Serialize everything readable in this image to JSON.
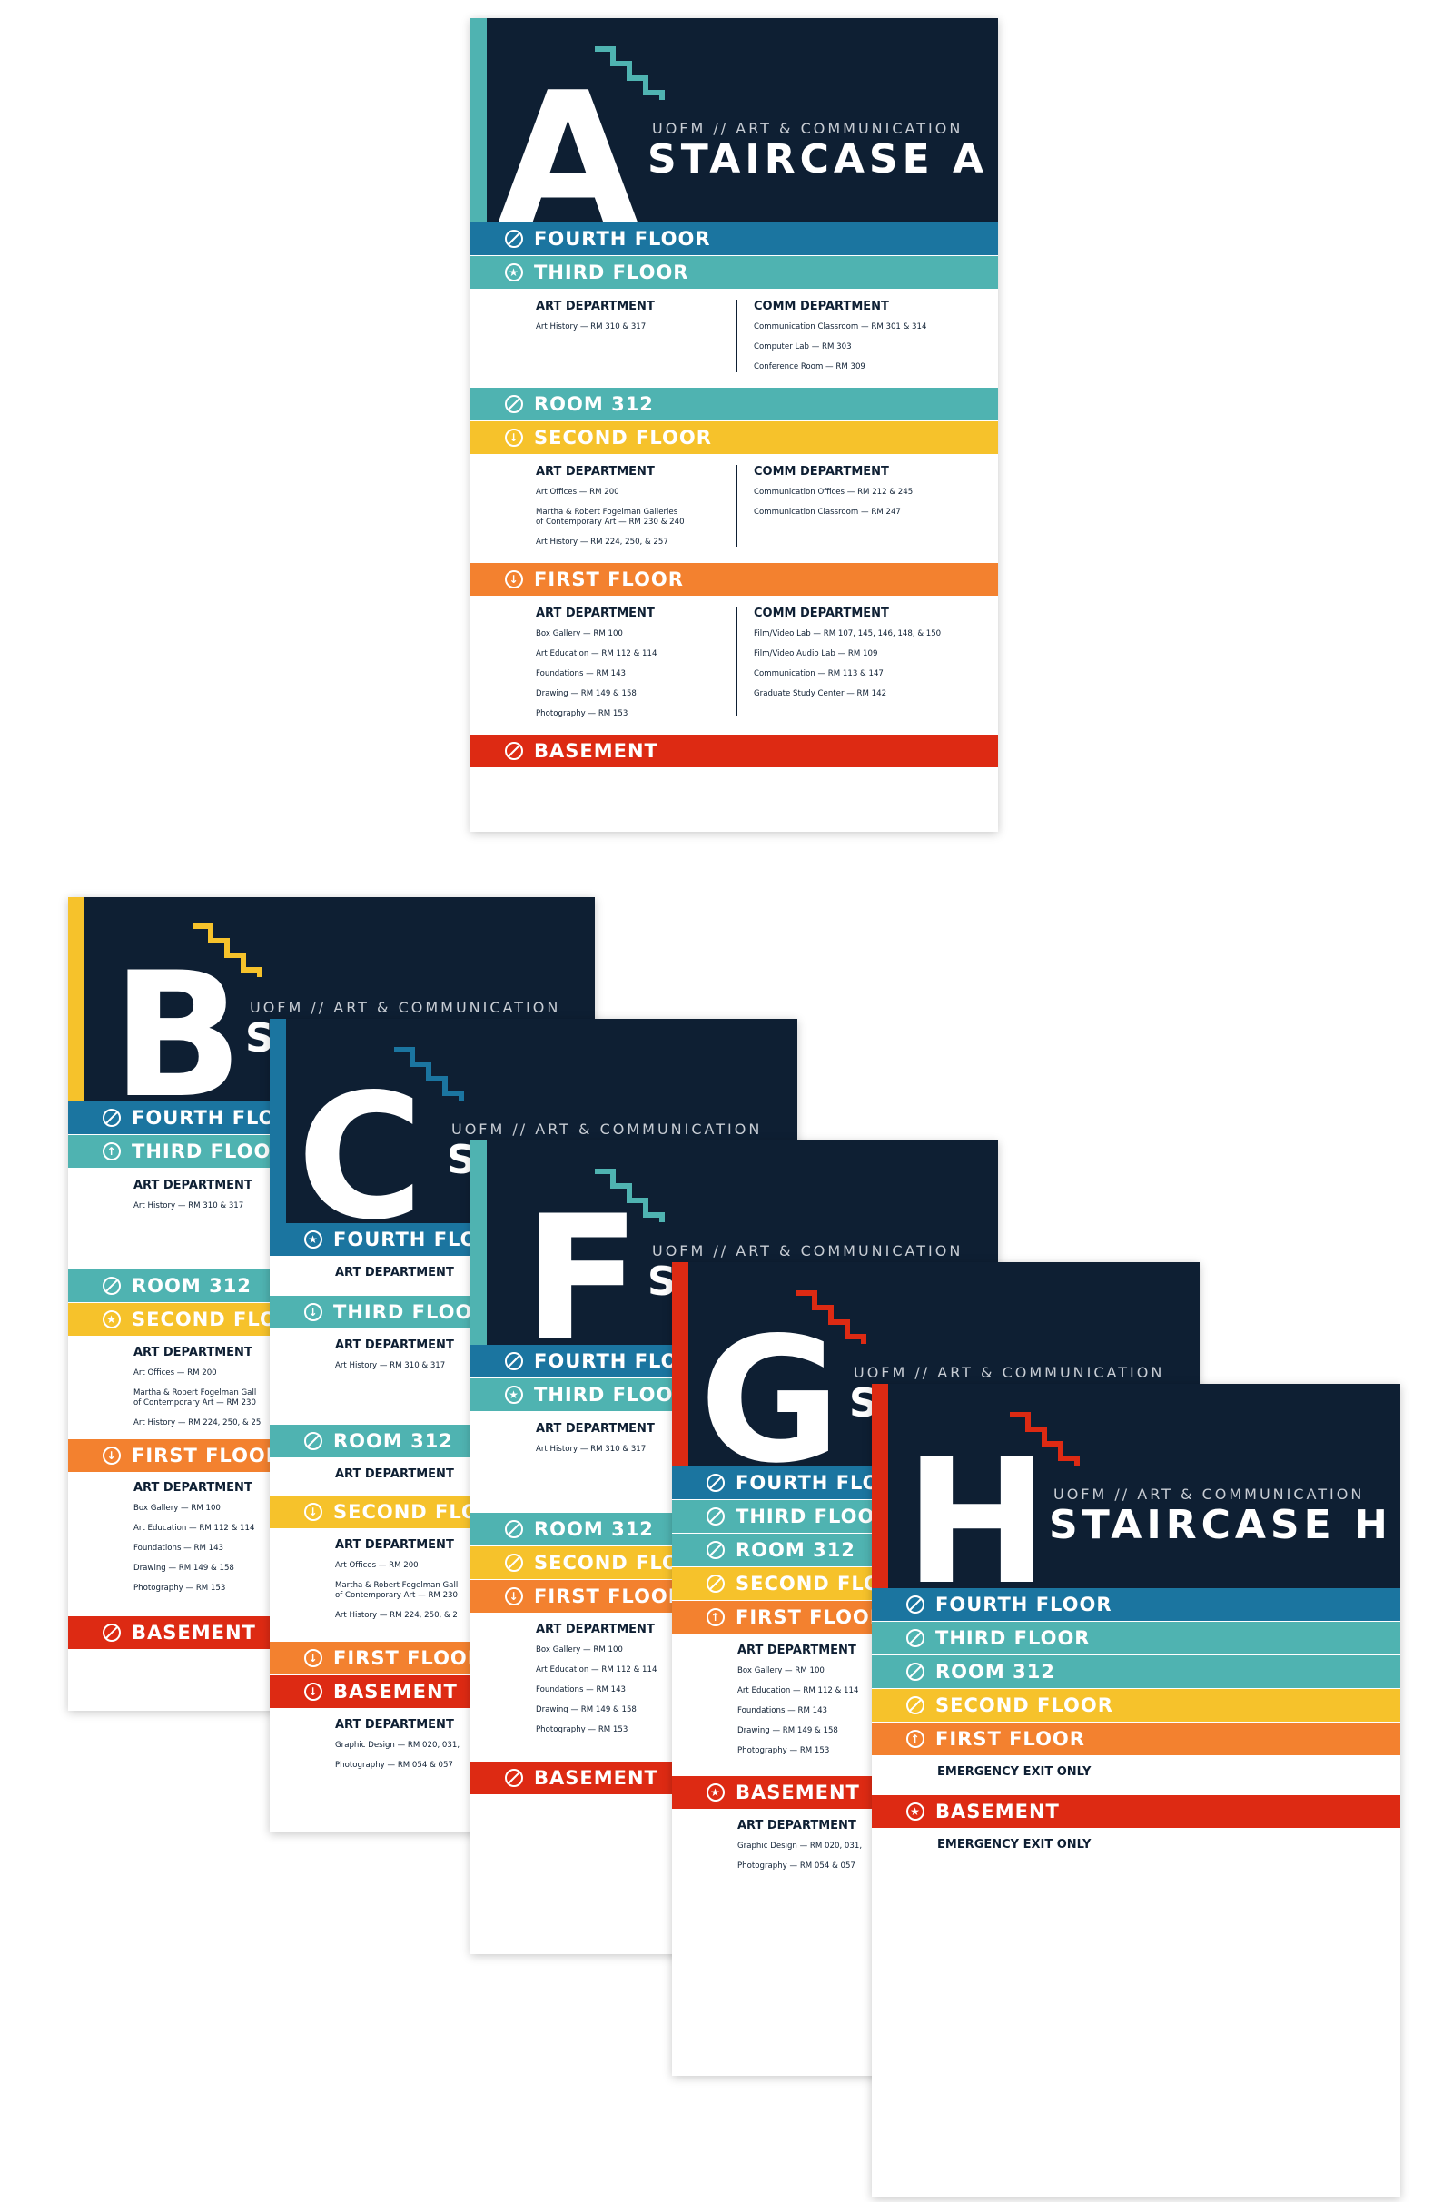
{
  "org": "UOFM // ART & COMMUNICATION",
  "colors": {
    "navy": "#0e1f33",
    "blue": "#1b75a0",
    "teal": "#4fb3b1",
    "yellow": "#f6c22b",
    "orange": "#f3812f",
    "red": "#dd2a13"
  },
  "floor_labels": {
    "fourth": "FOURTH FLOOR",
    "third": "THIRD FLOOR",
    "room312": "ROOM 312",
    "second": "SECOND FLOOR",
    "first": "FIRST FLOOR",
    "basement": "BASEMENT"
  },
  "dept_labels": {
    "art": "ART DEPARTMENT",
    "comm": "COMM DEPARTMENT"
  },
  "icons": {
    "no_access": "no-entry-icon",
    "current": "star-icon",
    "down": "arrow-down-icon",
    "up": "arrow-up-icon"
  },
  "signs": {
    "a": {
      "letter": "A",
      "title": "STAIRCASE A",
      "third_art": [
        "Art History — RM 310 & 317"
      ],
      "third_comm": [
        "Communication Classroom — RM 301 & 314",
        "Computer Lab — RM 303",
        "Conference Room — RM 309"
      ],
      "second_art": [
        "Art Offices — RM 200",
        "Martha & Robert Fogelman Galleries\nof Contemporary Art — RM 230 & 240",
        "Art History — RM 224, 250, & 257"
      ],
      "second_comm": [
        "Communication Offices — RM 212 & 245",
        "Communication Classroom — RM 247"
      ],
      "first_art": [
        "Box Gallery — RM 100",
        "Art Education — RM 112 & 114",
        "Foundations — RM 143",
        "Drawing — RM 149 & 158",
        "Photography — RM 153"
      ],
      "first_comm": [
        "Film/Video Lab — RM 107, 145, 146, 148, & 150",
        "Film/Video Audio Lab — RM 109",
        "Communication — RM 113 & 147",
        "Graduate Study Center — RM 142"
      ]
    },
    "b": {
      "letter": "B",
      "title_partial": "S",
      "fourth": "FOURTH FLOO",
      "third": "THIRD FLOOR",
      "second": "SECOND FLOO",
      "third_art": [
        "Art History — RM 310 & 317"
      ],
      "second_art": [
        "Art Offices — RM 200",
        "Martha & Robert Fogelman Gall\nof Contemporary Art — RM 230",
        "Art History — RM 224, 250, & 25"
      ],
      "first_art": [
        "Box Gallery — RM 100",
        "Art Education — RM 112 & 114",
        "Foundations — RM 143",
        "Drawing — RM 149 & 158",
        "Photography — RM 153"
      ]
    },
    "c": {
      "letter": "C",
      "title_partial": "S",
      "fourth": "FOURTH FLOO",
      "third": "THIRD FLOOR",
      "second": "SECOND FLOO",
      "third_art": [
        "Art History — RM 310 & 317"
      ],
      "second_art": [
        "Art Offices — RM 200",
        "Martha & Robert Fogelman Gall\nof Contemporary Art — RM 230",
        "Art History — RM 224, 250, & 2"
      ],
      "basement_art": [
        "Graphic Design — RM 020, 031,",
        "Photography — RM 054 & 057"
      ]
    },
    "f": {
      "letter": "F",
      "title_partial": "S",
      "fourth": "FOURTH FLOO",
      "third": "THIRD FLOOR",
      "second": "SECOND FLOO",
      "third_art": [
        "Art History — RM 310 & 317"
      ],
      "first_art": [
        "Box Gallery — RM 100",
        "Art Education — RM 112 & 114",
        "Foundations — RM 143",
        "Drawing — RM 149 & 158",
        "Photography — RM 153"
      ]
    },
    "g": {
      "letter": "G",
      "title_partial": "S",
      "fourth": "FOURTH FLOO",
      "third": "THIRD FLOOR",
      "second": "SECOND FLOO",
      "first_art": [
        "Box Gallery — RM 100",
        "Art Education — RM 112 & 114",
        "Foundations — RM 143",
        "Drawing — RM 149 & 158",
        "Photography — RM 153"
      ],
      "basement_art": [
        "Graphic Design — RM 020, 031,",
        "Photography — RM 054 & 057"
      ]
    },
    "h": {
      "letter": "H",
      "title": "STAIRCASE H",
      "exit_note": "EMERGENCY EXIT ONLY"
    }
  }
}
